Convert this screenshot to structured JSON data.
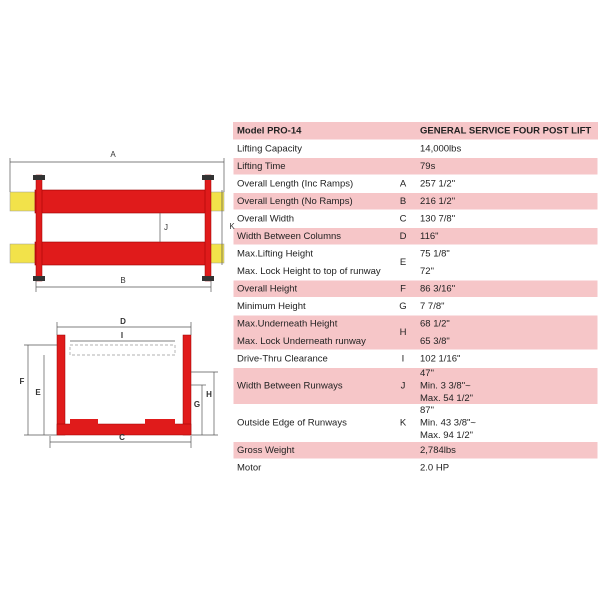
{
  "diagram": {
    "top_view": {
      "labels": [
        "A",
        "B",
        "J",
        "K"
      ]
    },
    "front_view": {
      "labels": [
        "D",
        "I",
        "C",
        "F",
        "E",
        "G",
        "H"
      ]
    }
  },
  "table": {
    "header": [
      "Model PRO-14",
      "GENERAL SERVICE FOUR POST LIFT"
    ],
    "rows": [
      {
        "label": [
          "Lifting Capacity"
        ],
        "value": [
          "14,000lbs"
        ]
      },
      {
        "label": [
          "Lifting Time"
        ],
        "value": [
          "79s"
        ]
      },
      {
        "label": [
          "Overall Length (Inc Ramps)"
        ],
        "letter": "A",
        "value": [
          "257 1/2\""
        ]
      },
      {
        "label": [
          "Overall Length (No Ramps)"
        ],
        "letter": "B",
        "value": [
          "216 1/2\""
        ]
      },
      {
        "label": [
          "Overall Width"
        ],
        "letter": "C",
        "value": [
          "130 7/8\""
        ]
      },
      {
        "label": [
          "Width Between Columns"
        ],
        "letter": "D",
        "value": [
          "116\""
        ]
      },
      {
        "label": [
          "Max.Lifting Height",
          "Max. Lock Height to top of runway"
        ],
        "letter": "E",
        "value": [
          "75 1/8\"",
          "72\""
        ]
      },
      {
        "label": [
          "Overall Height"
        ],
        "letter": "F",
        "value": [
          "86 3/16\""
        ]
      },
      {
        "label": [
          "Minimum Height"
        ],
        "letter": "G",
        "value": [
          "7 7/8\""
        ]
      },
      {
        "label": [
          "Max.Underneath Height",
          "Max. Lock Underneath runway"
        ],
        "letter": "H",
        "value": [
          "68 1/2\"",
          "65 3/8\""
        ]
      },
      {
        "label": [
          "Drive-Thru  Clearance"
        ],
        "letter": "I",
        "value": [
          "102 1/16\""
        ]
      },
      {
        "label": [
          "Width Between Runways"
        ],
        "letter": "J",
        "value": [
          "47\"",
          "Min. 3 3/8\"~",
          "Max. 54 1/2\""
        ]
      },
      {
        "label": [
          "Outside  Edge of Runways"
        ],
        "letter": "K",
        "value": [
          "87\"",
          "Min. 43 3/8\"~",
          "Max. 94 1/2\""
        ]
      },
      {
        "label": [
          "Gross Weight"
        ],
        "value": [
          "2,784lbs"
        ]
      },
      {
        "label": [
          "Motor"
        ],
        "value": [
          "2.0 HP"
        ]
      }
    ]
  }
}
